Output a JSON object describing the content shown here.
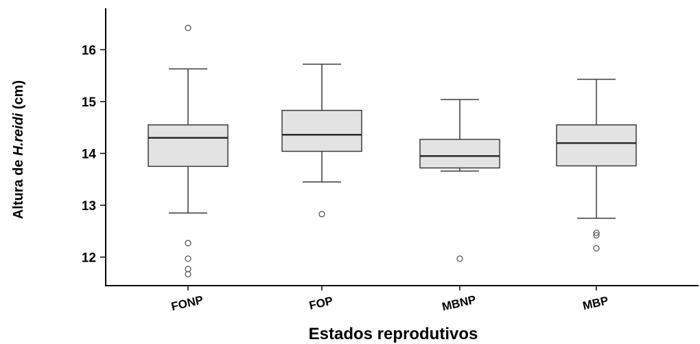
{
  "chart_data": {
    "type": "boxplot",
    "xlabel": "Estados reprodutivos",
    "ylabel": {
      "prefix": "Altura de ",
      "italic": "H.reidi",
      "suffix": " (cm)"
    },
    "ylim": [
      11.45,
      16.8
    ],
    "yticks": [
      12,
      13,
      14,
      15,
      16
    ],
    "grid": false,
    "categories": [
      "FONP",
      "FOP",
      "MBNP",
      "MBP"
    ],
    "boxes": [
      {
        "category": "FONP",
        "whisker_low": 12.85,
        "q1": 13.75,
        "median": 14.3,
        "q3": 14.55,
        "whisker_high": 15.63,
        "outliers": [
          16.42,
          12.27,
          11.97,
          11.77,
          11.67
        ]
      },
      {
        "category": "FOP",
        "whisker_low": 13.45,
        "q1": 14.04,
        "median": 14.36,
        "q3": 14.83,
        "whisker_high": 15.72,
        "outliers": [
          12.83
        ]
      },
      {
        "category": "MBNP",
        "whisker_low": 13.66,
        "q1": 13.72,
        "median": 13.95,
        "q3": 14.27,
        "whisker_high": 15.04,
        "outliers": [
          11.97
        ]
      },
      {
        "category": "MBP",
        "whisker_low": 12.75,
        "q1": 13.76,
        "median": 14.2,
        "q3": 14.55,
        "whisker_high": 15.43,
        "outliers": [
          12.47,
          12.42,
          12.17
        ]
      }
    ],
    "colors": {
      "box_fill": "#e3e3e3",
      "line": "#3a3a3a",
      "outlier": "#555555",
      "axis": "#000000"
    }
  }
}
